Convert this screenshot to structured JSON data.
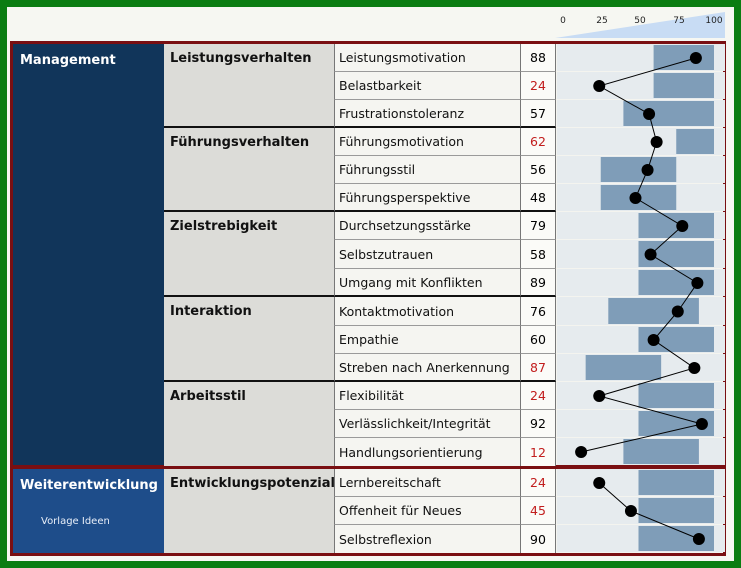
{
  "scale_ticks": [
    "0",
    "25",
    "50",
    "75",
    "100"
  ],
  "colors": {
    "frame": "#0b7d12",
    "group_border": "#7a0f12",
    "main_management": "#11355a",
    "main_weiter": "#1e4d8a",
    "band_light": "#e6ebee",
    "band_dark": "#7f9db8",
    "low_value": "#c21e1e",
    "normal_value": "#111111"
  },
  "groups": [
    {
      "label": "Management",
      "categories": [
        {
          "label": "Leistungsverhalten",
          "rows": [
            {
              "name": "Leistungsmotivation",
              "value": "88",
              "low": false,
              "band": [
                60,
                100
              ]
            },
            {
              "name": "Belastbarkeit",
              "value": "24",
              "low": true,
              "band": [
                60,
                100
              ]
            },
            {
              "name": "Frustrationstoleranz",
              "value": "57",
              "low": false,
              "band": [
                40,
                100
              ]
            }
          ]
        },
        {
          "label": "Führungsverhalten",
          "rows": [
            {
              "name": "Führungsmotivation",
              "value": "62",
              "low": true,
              "band": [
                75,
                100
              ]
            },
            {
              "name": "Führungsstil",
              "value": "56",
              "low": false,
              "band": [
                25,
                75
              ]
            },
            {
              "name": "Führungsperspektive",
              "value": "48",
              "low": false,
              "band": [
                25,
                75
              ]
            }
          ]
        },
        {
          "label": "Zielstrebigkeit",
          "rows": [
            {
              "name": "Durchsetzungsstärke",
              "value": "79",
              "low": false,
              "band": [
                50,
                100
              ]
            },
            {
              "name": "Selbstzutrauen",
              "value": "58",
              "low": false,
              "band": [
                50,
                100
              ]
            },
            {
              "name": "Umgang mit Konflikten",
              "value": "89",
              "low": false,
              "band": [
                50,
                100
              ]
            }
          ]
        },
        {
          "label": "Interaktion",
          "rows": [
            {
              "name": "Kontaktmotivation",
              "value": "76",
              "low": false,
              "band": [
                30,
                90
              ]
            },
            {
              "name": "Empathie",
              "value": "60",
              "low": false,
              "band": [
                50,
                100
              ]
            },
            {
              "name": "Streben nach Anerkennung",
              "value": "87",
              "low": true,
              "band": [
                15,
                65
              ]
            }
          ]
        },
        {
          "label": "Arbeitsstil",
          "rows": [
            {
              "name": "Flexibilität",
              "value": "24",
              "low": true,
              "band": [
                50,
                100
              ]
            },
            {
              "name": "Verlässlichkeit/Integrität",
              "value": "92",
              "low": false,
              "band": [
                50,
                100
              ]
            },
            {
              "name": "Handlungsorientierung",
              "value": "12",
              "low": true,
              "band": [
                40,
                90
              ]
            }
          ]
        }
      ]
    },
    {
      "label": "Weiterentwicklung",
      "watermark": "Vorlage Ideen",
      "categories": [
        {
          "label": "Entwicklungspotenzial",
          "rows": [
            {
              "name": "Lernbereitschaft",
              "value": "24",
              "low": true,
              "band": [
                50,
                100
              ]
            },
            {
              "name": "Offenheit für Neues",
              "value": "45",
              "low": true,
              "band": [
                50,
                100
              ]
            },
            {
              "name": "Selbstreflexion",
              "value": "90",
              "low": false,
              "band": [
                50,
                100
              ]
            }
          ]
        }
      ]
    }
  ]
}
